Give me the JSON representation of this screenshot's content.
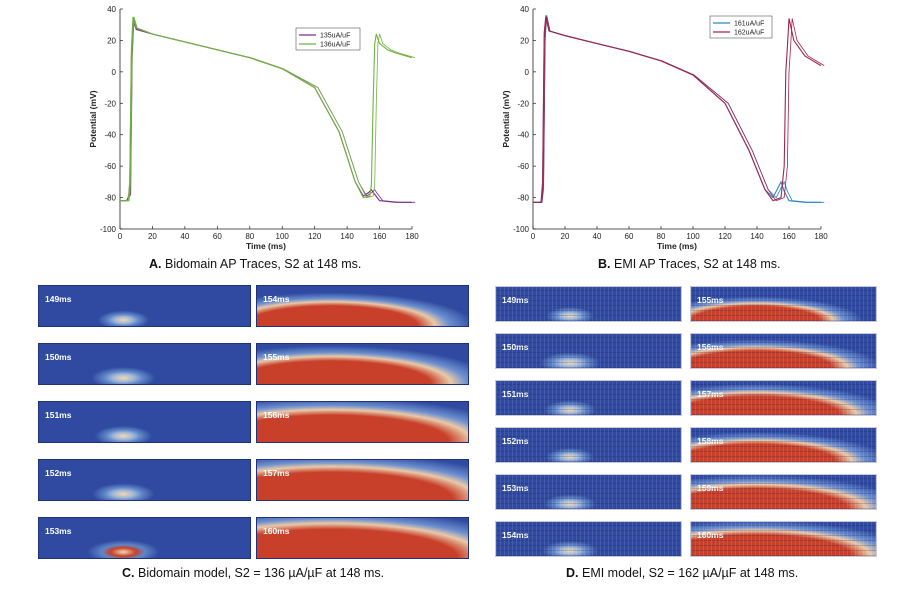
{
  "colors": {
    "c135": "#7b2d8e",
    "c136": "#6fb43f",
    "c161": "#2a86c2",
    "c162": "#a0264f",
    "tissue_rest": "#2f4aa0",
    "tissue_excited": "#c8402a"
  },
  "panel_a": {
    "caption_letter": "A.",
    "caption_text": "Bidomain AP Traces, S2 at 148 ms."
  },
  "panel_b": {
    "caption_letter": "B.",
    "caption_text": "EMI AP Traces, S2 at 148 ms."
  },
  "panel_c": {
    "caption_letter": "C.",
    "caption_text": "Bidomain model, S2 = 136 µA/µF at 148 ms.",
    "frames": [
      {
        "label": "149ms",
        "excite": 0.15
      },
      {
        "label": "154ms",
        "excite": 0.55
      },
      {
        "label": "150ms",
        "excite": 0.3
      },
      {
        "label": "155ms",
        "excite": 0.7
      },
      {
        "label": "151ms",
        "excite": 0.22
      },
      {
        "label": "156ms",
        "excite": 0.9
      },
      {
        "label": "152ms",
        "excite": 0.28
      },
      {
        "label": "157ms",
        "excite": 0.95
      },
      {
        "label": "153ms",
        "excite": 0.4
      },
      {
        "label": "160ms",
        "excite": 1.0
      }
    ]
  },
  "panel_d": {
    "caption_letter": "D.",
    "caption_text": "EMI model, S2 = 162 µA/µF at 148 ms.",
    "frames": [
      {
        "label": "149ms",
        "excite": 0.1
      },
      {
        "label": "155ms",
        "excite": 0.4
      },
      {
        "label": "150ms",
        "excite": 0.25
      },
      {
        "label": "156ms",
        "excite": 0.55
      },
      {
        "label": "151ms",
        "excite": 0.15
      },
      {
        "label": "157ms",
        "excite": 0.65
      },
      {
        "label": "152ms",
        "excite": 0.1
      },
      {
        "label": "158ms",
        "excite": 0.6
      },
      {
        "label": "153ms",
        "excite": 0.15
      },
      {
        "label": "159ms",
        "excite": 0.75
      },
      {
        "label": "154ms",
        "excite": 0.2
      },
      {
        "label": "160ms",
        "excite": 0.8
      }
    ]
  },
  "chart_data": [
    {
      "type": "line",
      "title": "",
      "xlabel": "Time (ms)",
      "ylabel": "Potential (mV)",
      "xlim": [
        0,
        180
      ],
      "ylim": [
        -100,
        40
      ],
      "xticks": [
        0,
        20,
        40,
        60,
        80,
        100,
        120,
        140,
        160,
        180
      ],
      "yticks": [
        40,
        20,
        0,
        -20,
        -40,
        -60,
        -80,
        -100
      ],
      "legend": "top-right",
      "series": [
        {
          "name": "135uA/uF",
          "color": "#7b2d8e",
          "x": [
            0,
            4,
            6,
            7,
            8,
            10,
            20,
            40,
            60,
            80,
            100,
            120,
            135,
            145,
            150,
            153,
            155,
            157,
            160,
            170,
            180
          ],
          "y": [
            -82,
            -82,
            -78,
            10,
            33,
            27,
            24,
            19,
            14,
            9,
            2,
            -10,
            -38,
            -70,
            -79,
            -77,
            -75,
            -78,
            -82,
            -83,
            -83
          ]
        },
        {
          "name": "136uA/uF",
          "color": "#6fb43f",
          "x": [
            0,
            5,
            6,
            7,
            8,
            10,
            20,
            40,
            60,
            80,
            100,
            120,
            135,
            145,
            150,
            154,
            155,
            156,
            157,
            158,
            159,
            160,
            165,
            170,
            180
          ],
          "y": [
            -82,
            -82,
            -70,
            15,
            35,
            28,
            24,
            19,
            14,
            9,
            2,
            -10,
            -38,
            -70,
            -80,
            -79,
            -72,
            -20,
            18,
            24,
            21,
            18,
            14,
            12,
            9
          ]
        }
      ]
    },
    {
      "type": "line",
      "title": "",
      "xlabel": "Time (ms)",
      "ylabel": "Potential (mV)",
      "xlim": [
        0,
        180
      ],
      "ylim": [
        -100,
        40
      ],
      "xticks": [
        0,
        20,
        40,
        60,
        80,
        100,
        120,
        140,
        160,
        180
      ],
      "yticks": [
        40,
        20,
        0,
        -20,
        -40,
        -60,
        -80,
        -100
      ],
      "legend": "top-left",
      "series": [
        {
          "name": "161uA/uF",
          "color": "#2a86c2",
          "x": [
            0,
            5,
            6,
            7,
            8,
            10,
            20,
            40,
            60,
            80,
            100,
            120,
            135,
            145,
            150,
            153,
            155,
            157,
            160,
            170,
            180
          ],
          "y": [
            -83,
            -83,
            -75,
            20,
            36,
            26,
            23,
            18,
            13,
            7,
            -2,
            -20,
            -50,
            -75,
            -80,
            -74,
            -70,
            -76,
            -82,
            -83,
            -83
          ]
        },
        {
          "name": "162uA/uF",
          "color": "#a0264f",
          "x": [
            0,
            5,
            6,
            7,
            8,
            10,
            20,
            40,
            60,
            80,
            100,
            120,
            135,
            145,
            150,
            155,
            157,
            158,
            159,
            160,
            163,
            170,
            180
          ],
          "y": [
            -83,
            -83,
            -70,
            25,
            35,
            26,
            23,
            18,
            13,
            7,
            -2,
            -20,
            -50,
            -75,
            -82,
            -80,
            -60,
            0,
            16,
            34,
            20,
            10,
            4
          ]
        }
      ]
    }
  ]
}
